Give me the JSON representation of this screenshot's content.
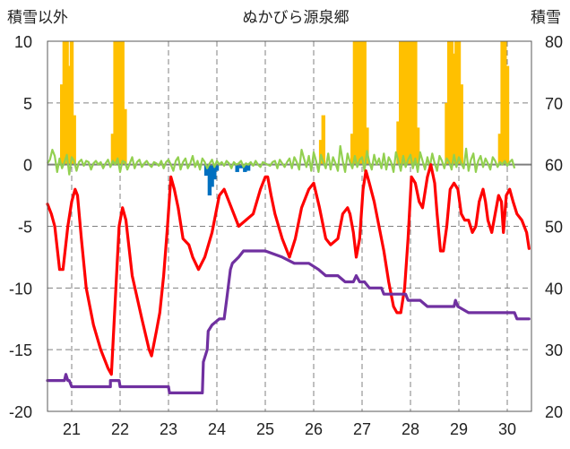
{
  "chart_data": {
    "type": "line",
    "title": "ぬかびら源泉郷",
    "ylabel_left": "積雪以外",
    "ylabel_right": "積雪",
    "ylim_left": [
      -20,
      10
    ],
    "ylim_right": [
      20,
      80
    ],
    "yticks_left": [
      "10",
      "5",
      "0",
      "-5",
      "-10",
      "-15",
      "-20"
    ],
    "yticks_right": [
      "80",
      "70",
      "60",
      "50",
      "40",
      "30",
      "20"
    ],
    "xlim": [
      20.5,
      30.5
    ],
    "xticks": [
      "21",
      "22",
      "23",
      "24",
      "25",
      "26",
      "27",
      "28",
      "29",
      "30"
    ],
    "grid": "dashed",
    "colors": {
      "temperature": "#ff0000",
      "snow_depth": "#7030a0",
      "snowfall": "#ffc000",
      "precip_neg": "#0070c0",
      "wind": "#92d050",
      "zero_line": "#7f7f7f"
    },
    "series": [
      {
        "key": "temperature",
        "axis": "left",
        "x": [
          20.5,
          20.58,
          20.65,
          20.75,
          20.82,
          20.92,
          21.0,
          21.07,
          21.12,
          21.2,
          21.3,
          21.45,
          21.6,
          21.75,
          21.82,
          21.9,
          21.98,
          22.05,
          22.12,
          22.25,
          22.45,
          22.6,
          22.65,
          22.75,
          22.82,
          22.9,
          22.98,
          23.05,
          23.12,
          23.2,
          23.3,
          23.42,
          23.5,
          23.62,
          23.75,
          23.9,
          24.05,
          24.15,
          24.3,
          24.45,
          24.6,
          24.75,
          24.9,
          25.0,
          25.05,
          25.12,
          25.2,
          25.35,
          25.5,
          25.62,
          25.75,
          25.9,
          26.0,
          26.12,
          26.25,
          26.35,
          26.5,
          26.6,
          26.7,
          26.75,
          26.82,
          26.88,
          26.95,
          27.02,
          27.08,
          27.15,
          27.25,
          27.35,
          27.45,
          27.55,
          27.65,
          27.72,
          27.8,
          27.88,
          27.95,
          28.02,
          28.1,
          28.18,
          28.25,
          28.35,
          28.42,
          28.5,
          28.55,
          28.62,
          28.68,
          28.75,
          28.82,
          28.9,
          28.98,
          29.05,
          29.12,
          29.2,
          29.28,
          29.35,
          29.42,
          29.5,
          29.55,
          29.6,
          29.68,
          29.75,
          29.82,
          29.88,
          29.92,
          29.98,
          30.05,
          30.12,
          30.2,
          30.3,
          30.4,
          30.45
        ],
        "values": [
          -3.2,
          -4.0,
          -5.0,
          -8.5,
          -8.5,
          -5.0,
          -3.0,
          -2.0,
          -2.5,
          -6.0,
          -10.0,
          -13.0,
          -15.0,
          -16.5,
          -17.0,
          -11.0,
          -5.0,
          -3.5,
          -4.5,
          -9.0,
          -12.5,
          -15.0,
          -15.5,
          -13.5,
          -12.0,
          -9.0,
          -5.0,
          -1.0,
          -2.0,
          -3.5,
          -6.0,
          -6.5,
          -7.5,
          -8.5,
          -7.5,
          -5.5,
          -2.5,
          -2.0,
          -3.5,
          -5.0,
          -4.5,
          -4.0,
          -2.0,
          -1.0,
          -1.0,
          -2.5,
          -4.0,
          -6.0,
          -7.5,
          -6.0,
          -3.5,
          -2.0,
          -1.5,
          -3.5,
          -6.0,
          -6.5,
          -6.0,
          -4.0,
          -3.5,
          -4.0,
          -5.5,
          -7.5,
          -6.0,
          -2.0,
          -0.5,
          -1.5,
          -3.0,
          -5.0,
          -7.0,
          -9.5,
          -11.5,
          -12.0,
          -12.0,
          -10.0,
          -6.0,
          -1.0,
          -1.5,
          -3.0,
          -3.5,
          -1.0,
          0.0,
          -1.5,
          -4.0,
          -7.0,
          -7.0,
          -5.0,
          -2.0,
          -1.5,
          -2.0,
          -4.0,
          -4.5,
          -4.5,
          -5.5,
          -5.0,
          -3.0,
          -2.0,
          -3.0,
          -4.5,
          -5.5,
          -4.0,
          -2.5,
          -3.0,
          -5.5,
          -2.5,
          -2.0,
          -3.0,
          -4.0,
          -4.5,
          -5.5,
          -6.8
        ]
      },
      {
        "key": "snow_depth",
        "axis": "right",
        "x": [
          20.5,
          20.85,
          20.88,
          20.92,
          20.95,
          21.0,
          21.5,
          21.8,
          21.8,
          21.98,
          22.0,
          23.0,
          23.02,
          23.05,
          23.5,
          23.7,
          23.72,
          23.8,
          23.82,
          23.9,
          24.05,
          24.15,
          24.2,
          24.28,
          24.32,
          24.45,
          24.55,
          24.7,
          25.0,
          25.35,
          25.6,
          25.9,
          26.1,
          26.25,
          26.5,
          26.65,
          26.82,
          26.88,
          26.95,
          27.05,
          27.15,
          27.4,
          27.45,
          27.65,
          27.9,
          27.95,
          28.2,
          28.35,
          28.6,
          28.75,
          28.9,
          28.93,
          28.98,
          29.2,
          29.5,
          30.15,
          30.2,
          30.45
        ],
        "values": [
          25.0,
          25.0,
          26.0,
          25.0,
          25.0,
          24.0,
          24.0,
          24.0,
          25.0,
          25.0,
          24.0,
          24.0,
          23.0,
          23.0,
          23.0,
          23.0,
          28.0,
          30.0,
          33.0,
          34.0,
          35.0,
          35.0,
          38.0,
          43.0,
          44.0,
          45.0,
          46.0,
          46.0,
          46.0,
          45.0,
          44.0,
          44.0,
          43.0,
          42.0,
          42.0,
          41.0,
          41.0,
          42.0,
          41.0,
          41.0,
          40.0,
          40.0,
          39.0,
          39.0,
          39.0,
          38.0,
          38.0,
          37.0,
          37.0,
          37.0,
          37.0,
          38.0,
          37.0,
          36.0,
          36.0,
          36.0,
          35.0,
          35.0
        ]
      }
    ],
    "bars": [
      {
        "key": "snowfall",
        "axis": "left",
        "x": [
          20.8,
          20.85,
          20.9,
          20.95,
          21.0,
          21.05,
          21.85,
          21.9,
          21.95,
          22.0,
          22.05,
          22.1,
          26.15,
          26.2,
          26.8,
          26.85,
          26.9,
          26.95,
          27.0,
          27.05,
          27.1,
          27.75,
          27.8,
          27.85,
          27.9,
          27.95,
          28.0,
          28.05,
          28.1,
          28.15,
          28.75,
          28.8,
          28.85,
          28.9,
          28.95,
          29.0,
          29.05,
          29.85,
          29.9,
          29.95,
          30.0
        ],
        "values": [
          6.5,
          10.0,
          10.0,
          8.0,
          10.0,
          4.0,
          2.5,
          10.0,
          10.0,
          10.0,
          10.0,
          4.5,
          2.0,
          4.0,
          2.5,
          10.0,
          10.0,
          10.0,
          10.0,
          10.0,
          3.0,
          3.5,
          10.0,
          10.0,
          10.0,
          10.0,
          10.0,
          10.0,
          10.0,
          3.0,
          5.0,
          10.0,
          10.0,
          9.0,
          10.0,
          10.0,
          6.5,
          2.5,
          10.0,
          10.0,
          8.0
        ]
      },
      {
        "key": "precip_neg",
        "axis": "left",
        "x": [
          23.78,
          23.85,
          23.9,
          23.95,
          24.0,
          24.42,
          24.5,
          24.58,
          24.65
        ],
        "values": [
          -0.9,
          -2.5,
          -1.8,
          -1.2,
          -0.5,
          -0.6,
          -0.3,
          -0.6,
          -0.5
        ]
      }
    ],
    "wind": {
      "key": "wind",
      "axis": "left",
      "x_start": 20.5,
      "x_end": 30.45,
      "step": 0.05,
      "values": [
        0.1,
        0.4,
        1.2,
        0.7,
        -0.6,
        0.5,
        -0.3,
        0.2,
        0.8,
        -0.8,
        0.6,
        0.3,
        -0.5,
        0.2,
        0.4,
        -0.1,
        0.3,
        0.2,
        -0.4,
        0.1,
        0.3,
        0.0,
        0.2,
        -0.3,
        0.1,
        0.4,
        -0.2,
        0.3,
        0.0,
        0.5,
        -0.6,
        0.3,
        0.2,
        -0.4,
        0.1,
        0.6,
        -0.3,
        0.2,
        0.4,
        -0.2,
        0.1,
        0.3,
        0.0,
        -0.2,
        0.2,
        0.1,
        -0.1,
        0.3,
        -0.3,
        0.2,
        0.4,
        0.0,
        -0.5,
        0.3,
        0.6,
        -0.4,
        0.2,
        0.5,
        -0.3,
        0.1,
        0.7,
        -0.2,
        0.3,
        -0.4,
        0.5,
        0.2,
        -0.3,
        0.1,
        0.4,
        -0.2,
        0.3,
        0.0,
        0.2,
        -0.1,
        0.3,
        0.1,
        -0.3,
        0.2,
        0.0,
        0.1,
        0.3,
        -0.2,
        0.1,
        0.0,
        0.2,
        -0.1,
        0.3,
        0.0,
        -0.2,
        0.2,
        0.1,
        0.0,
        -0.1,
        0.2,
        0.3,
        -0.3,
        0.4,
        0.1,
        -0.2,
        0.2,
        0.5,
        -0.3,
        0.6,
        0.2,
        -0.4,
        1.2,
        0.5,
        -0.2,
        0.7,
        -0.5,
        1.0,
        0.3,
        -0.6,
        0.8,
        0.2,
        -0.3,
        0.9,
        -0.4,
        0.6,
        0.1,
        -0.5,
        1.5,
        0.3,
        -0.6,
        0.9,
        0.2,
        -0.3,
        0.7,
        -0.2,
        0.4,
        0.6,
        -0.5,
        1.1,
        0.2,
        -0.4,
        0.8,
        0.0,
        0.5,
        -0.3,
        0.9,
        -0.4,
        0.6,
        0.2,
        -0.6,
        1.0,
        0.3,
        -0.5,
        0.7,
        -0.2,
        0.4,
        0.8,
        -0.3,
        0.5,
        -0.6,
        1.0,
        0.3,
        -0.4,
        0.6,
        -0.2,
        0.9,
        0.1,
        -0.5,
        0.7,
        0.3,
        -0.3,
        0.5,
        0.2,
        -0.4,
        0.8,
        -0.2,
        0.6,
        0.1,
        -0.3,
        1.3,
        -0.5,
        0.4,
        0.9,
        -0.6,
        0.3,
        0.7,
        -0.2,
        0.5,
        0.1,
        -0.4,
        0.6,
        0.3,
        -0.2,
        0.2,
        0.0,
        0.3,
        -0.1,
        0.2,
        0.4,
        -0.3
      ]
    }
  }
}
